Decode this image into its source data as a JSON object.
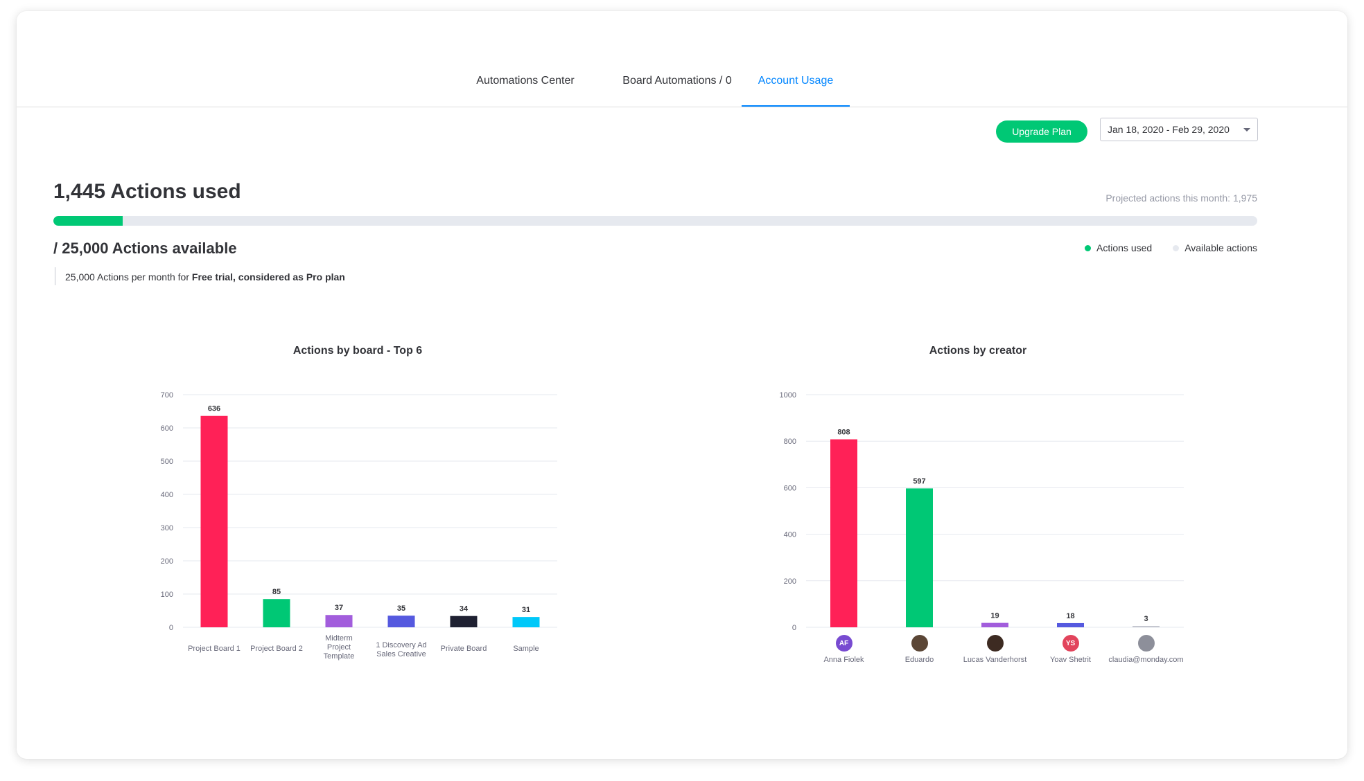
{
  "tabs": [
    {
      "label": "Automations Center"
    },
    {
      "label": "Board Automations / 0"
    },
    {
      "label": "Account Usage"
    }
  ],
  "toolbar": {
    "upgrade_label": "Upgrade Plan",
    "date_range": "Jan 18, 2020 - Feb 29, 2020"
  },
  "usage": {
    "used_title": "1,445 Actions used",
    "projected": "Projected actions this month: 1,975",
    "available_title": "/ 25,000 Actions available",
    "progress_fraction": 0.0578,
    "legend_used": "Actions used",
    "legend_available": "Available actions",
    "plan_prefix": "25,000 Actions per month for ",
    "plan_bold": "Free trial, considered as Pro plan"
  },
  "colors": {
    "accent": "#0085ff",
    "green": "#00c875",
    "track": "#e6e9ef"
  },
  "chart_data": [
    {
      "type": "bar",
      "title": "Actions by board - Top 6",
      "categories": [
        "Project Board 1",
        "Project Board 2",
        "Midterm Project Template",
        "1 Discovery Ad Sales Creative",
        "Private Board",
        "Sample"
      ],
      "category_lines": [
        [
          "Project Board 1"
        ],
        [
          "Project Board 2"
        ],
        [
          "Midterm",
          "Project",
          "Template"
        ],
        [
          "1 Discovery Ad",
          "Sales Creative"
        ],
        [
          "Private Board"
        ],
        [
          "Sample"
        ]
      ],
      "values": [
        636,
        85,
        37,
        35,
        34,
        31
      ],
      "colors": [
        "#ff2157",
        "#00c875",
        "#a25ddc",
        "#5559df",
        "#1f2132",
        "#00c8f9"
      ],
      "yticks": [
        0,
        100,
        200,
        300,
        400,
        500,
        600,
        700
      ],
      "ylim": [
        0,
        700
      ],
      "grid": true
    },
    {
      "type": "bar",
      "title": "Actions by creator",
      "categories": [
        "Anna Fiolek",
        "Eduardo",
        "Lucas Vanderhorst",
        "Yoav Shetrit",
        "claudia@monday.com"
      ],
      "values": [
        808,
        597,
        19,
        18,
        3
      ],
      "colors": [
        "#ff2157",
        "#00c875",
        "#a25ddc",
        "#5559df",
        "#c5c7d0"
      ],
      "avatars": [
        {
          "initials": "AF",
          "color": "#784bd1"
        },
        {
          "initials": "",
          "color": "#5b4636"
        },
        {
          "initials": "",
          "color": "#3d2b22"
        },
        {
          "initials": "YS",
          "color": "#e2445c"
        },
        {
          "initials": "",
          "color": "#8d8f9a"
        }
      ],
      "yticks": [
        0,
        200,
        400,
        600,
        800,
        1000
      ],
      "ylim": [
        0,
        1000
      ],
      "grid": true
    }
  ]
}
